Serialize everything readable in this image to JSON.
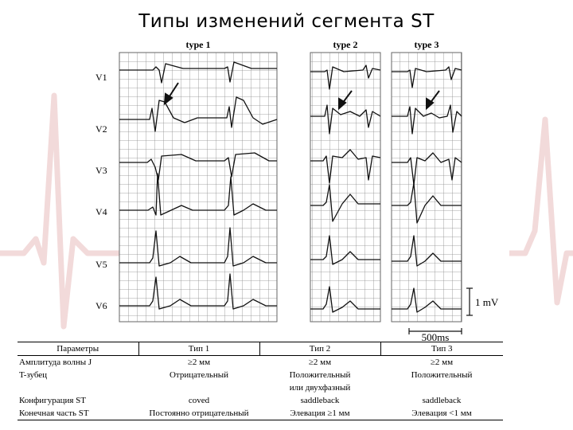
{
  "title": "Типы изменений сегмента ST",
  "figure": {
    "types": [
      "type 1",
      "type 2",
      "type 3"
    ],
    "leads": [
      "V1",
      "V2",
      "V3",
      "V4",
      "V5",
      "V6"
    ],
    "voltage_scale": "1 mV",
    "time_scale": "500ms"
  },
  "table": {
    "headers": [
      "Параметры",
      "Тип 1",
      "Тип 2",
      "Тип 3"
    ],
    "rows": [
      {
        "param": "Амплитуда волны J",
        "t1": "≥2 мм",
        "t2": "≥2 мм",
        "t3": "≥2 мм"
      },
      {
        "param": "T-зубец",
        "t1": "Отрицательный",
        "t2": "Положительный",
        "t3": "Положительный"
      },
      {
        "param": "",
        "t1": "",
        "t2": "или двухфазный",
        "t3": ""
      },
      {
        "param": "Конфигурация ST",
        "t1": "coved",
        "t2": "saddleback",
        "t3": "saddleback"
      },
      {
        "param": "Конечная часть ST",
        "t1": "Постоянно отрицательный",
        "t2": "Элевация ≥1 мм",
        "t3": "Элевация <1 мм"
      }
    ]
  },
  "colors": {
    "grid": "#8a8a8a",
    "trace": "#111111",
    "background_wave": "#f3dede"
  }
}
